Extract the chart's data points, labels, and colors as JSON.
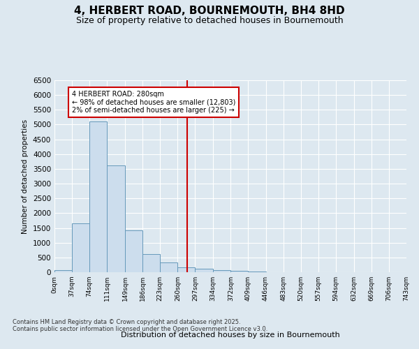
{
  "title": "4, HERBERT ROAD, BOURNEMOUTH, BH4 8HD",
  "subtitle": "Size of property relative to detached houses in Bournemouth",
  "xlabel": "Distribution of detached houses by size in Bournemouth",
  "ylabel": "Number of detached properties",
  "footer_line1": "Contains HM Land Registry data © Crown copyright and database right 2025.",
  "footer_line2": "Contains public sector information licensed under the Open Government Licence v3.0.",
  "annotation_title": "4 HERBERT ROAD: 280sqm",
  "annotation_line2": "← 98% of detached houses are smaller (12,803)",
  "annotation_line3": "2% of semi-detached houses are larger (225) →",
  "property_size": 280,
  "bin_edges": [
    0,
    37,
    74,
    111,
    149,
    186,
    223,
    260,
    297,
    334,
    372,
    409,
    446,
    483,
    520,
    557,
    594,
    632,
    669,
    706,
    743
  ],
  "bar_values": [
    80,
    1650,
    5100,
    3625,
    1420,
    620,
    320,
    160,
    120,
    65,
    50,
    20,
    0,
    0,
    0,
    0,
    0,
    0,
    0,
    0
  ],
  "bar_color": "#ccdded",
  "bar_edge_color": "#6699bb",
  "vline_color": "#cc0000",
  "vline_x": 280,
  "annotation_box_color": "#cc0000",
  "annotation_bg_color": "#ffffff",
  "ylim": [
    0,
    6500
  ],
  "yticks": [
    0,
    500,
    1000,
    1500,
    2000,
    2500,
    3000,
    3500,
    4000,
    4500,
    5000,
    5500,
    6000,
    6500
  ],
  "bg_color": "#dde8f0",
  "plot_bg_color": "#dde8f0",
  "grid_color": "#ffffff"
}
